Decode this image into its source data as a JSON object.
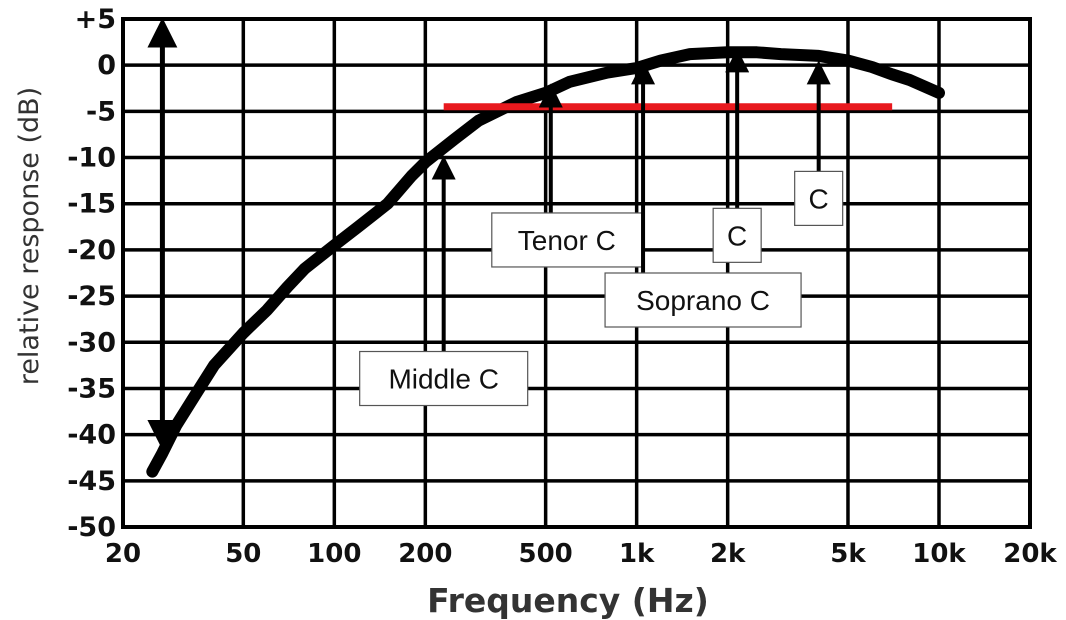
{
  "chart_data": {
    "type": "line",
    "xlabel": "Frequency (Hz)",
    "ylabel": "relative response (dB)",
    "x_scale": "log",
    "grid": true,
    "xlim": [
      20,
      20000
    ],
    "ylim": [
      -50,
      5
    ],
    "x_ticks": [
      {
        "value": 20,
        "label": "20"
      },
      {
        "value": 50,
        "label": "50"
      },
      {
        "value": 100,
        "label": "100"
      },
      {
        "value": 200,
        "label": "200"
      },
      {
        "value": 500,
        "label": "500"
      },
      {
        "value": 1000,
        "label": "1k"
      },
      {
        "value": 2000,
        "label": "2k"
      },
      {
        "value": 5000,
        "label": "5k"
      },
      {
        "value": 10000,
        "label": "10k"
      },
      {
        "value": 20000,
        "label": "20k"
      }
    ],
    "y_ticks": [
      {
        "value": 5,
        "label": "+5"
      },
      {
        "value": 0,
        "label": "0"
      },
      {
        "value": -5,
        "label": "-5"
      },
      {
        "value": -10,
        "label": "-10"
      },
      {
        "value": -15,
        "label": "-15"
      },
      {
        "value": -20,
        "label": "-20"
      },
      {
        "value": -25,
        "label": "-25"
      },
      {
        "value": -30,
        "label": "-30"
      },
      {
        "value": -35,
        "label": "-35"
      },
      {
        "value": -40,
        "label": "-40"
      },
      {
        "value": -45,
        "label": "-45"
      },
      {
        "value": -50,
        "label": "-50"
      }
    ],
    "series": [
      {
        "color": "#000000",
        "points": [
          [
            25,
            -44
          ],
          [
            27,
            -42
          ],
          [
            30,
            -39
          ],
          [
            35,
            -35.5
          ],
          [
            40,
            -32.5
          ],
          [
            50,
            -29
          ],
          [
            60,
            -26.5
          ],
          [
            70,
            -24
          ],
          [
            80,
            -22
          ],
          [
            100,
            -19.5
          ],
          [
            120,
            -17.5
          ],
          [
            150,
            -15
          ],
          [
            180,
            -12
          ],
          [
            200,
            -10.5
          ],
          [
            250,
            -8
          ],
          [
            300,
            -6
          ],
          [
            400,
            -4
          ],
          [
            500,
            -3
          ],
          [
            600,
            -1.8
          ],
          [
            800,
            -0.8
          ],
          [
            1000,
            -0.3
          ],
          [
            1200,
            0.5
          ],
          [
            1500,
            1.2
          ],
          [
            2000,
            1.4
          ],
          [
            2500,
            1.4
          ],
          [
            3000,
            1.2
          ],
          [
            4000,
            1
          ],
          [
            5000,
            0.5
          ],
          [
            6000,
            -0.2
          ],
          [
            7000,
            -1
          ],
          [
            8000,
            -1.6
          ],
          [
            10000,
            -3
          ]
        ]
      }
    ],
    "reference_line": {
      "y": -4.5,
      "x_range": [
        230,
        7000
      ],
      "color": "#e8191e"
    },
    "range_arrow": {
      "x": 27,
      "y_range": [
        -41,
        4.5
      ]
    },
    "annotations": [
      {
        "label": "Middle C",
        "x": 230,
        "y_top": -10.3,
        "y_bottom": -31
      },
      {
        "label": "Tenor C",
        "x": 520,
        "y_top": -2.5,
        "y_bottom": -16
      },
      {
        "label": "Soprano C",
        "x": 1050,
        "y_top": 0,
        "y_bottom": -22.5
      },
      {
        "label": "C",
        "x": 2150,
        "y_top": 1.3,
        "y_bottom": -15.5
      },
      {
        "label": "C",
        "x": 4000,
        "y_top": 0,
        "y_bottom": -11.5
      }
    ]
  }
}
